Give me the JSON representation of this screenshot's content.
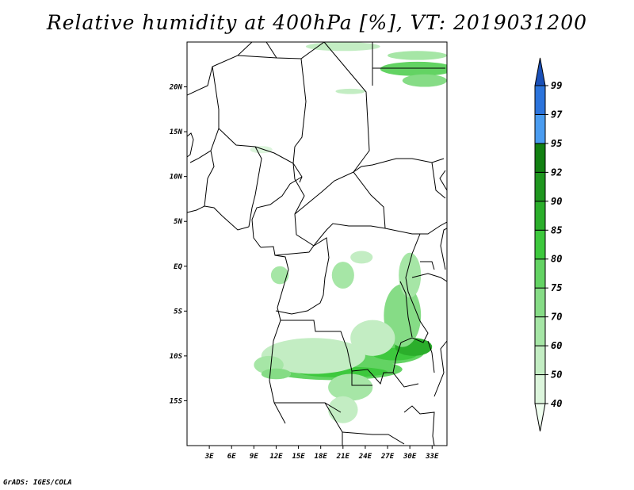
{
  "title": "Relative humidity at 400hPa [%], VT: 2019031200",
  "credit": "GrADS: IGES/COLA",
  "map": {
    "lon_range": [
      0,
      35
    ],
    "lat_range": [
      -20,
      25
    ],
    "lon_ticks": [
      3,
      6,
      9,
      12,
      15,
      18,
      21,
      24,
      27,
      30,
      33
    ],
    "lon_tick_labels": [
      "3E",
      "6E",
      "9E",
      "12E",
      "15E",
      "18E",
      "21E",
      "24E",
      "27E",
      "30E",
      "33E"
    ],
    "lat_ticks": [
      20,
      15,
      10,
      5,
      0,
      -5,
      -10,
      -15
    ],
    "lat_tick_labels": [
      "20N",
      "15N",
      "10N",
      "5N",
      "EQ",
      "5S",
      "10S",
      "15S"
    ]
  },
  "colorbar": {
    "levels": [
      "40",
      "50",
      "60",
      "70",
      "75",
      "80",
      "85",
      "90",
      "92",
      "95",
      "97",
      "99"
    ],
    "colors": [
      "#f0fff0",
      "#dcf5dc",
      "#c3edc3",
      "#a6e6a6",
      "#86dc86",
      "#63d363",
      "#3dc83d",
      "#2bae2b",
      "#1f961f",
      "#128012",
      "#4a9cf0",
      "#2c74dc",
      "#1a50b8"
    ]
  },
  "humid_regions": [
    {
      "lon": 20,
      "lat": -11.5,
      "rx": 9,
      "ry": 1.2,
      "level": 4
    },
    {
      "lon": 21,
      "lat": -11.8,
      "rx": 6,
      "ry": 0.6,
      "level": 5
    },
    {
      "lon": 27,
      "lat": -9.5,
      "rx": 5,
      "ry": 1.4,
      "level": 4
    },
    {
      "lon": 28,
      "lat": -9.8,
      "rx": 3,
      "ry": 0.7,
      "level": 5
    },
    {
      "lon": 30.5,
      "lat": -9,
      "rx": 2.5,
      "ry": 1.0,
      "level": 6
    },
    {
      "lon": 29,
      "lat": -5.5,
      "rx": 2.5,
      "ry": 3.5,
      "level": 3
    },
    {
      "lon": 30,
      "lat": -1,
      "rx": 1.5,
      "ry": 2.5,
      "level": 2
    },
    {
      "lon": 25,
      "lat": -8,
      "rx": 3,
      "ry": 2,
      "level": 1
    },
    {
      "lon": 17,
      "lat": -10,
      "rx": 7,
      "ry": 2,
      "level": 1
    },
    {
      "lon": 22,
      "lat": -13.5,
      "rx": 3,
      "ry": 1.5,
      "level": 2
    },
    {
      "lon": 21,
      "lat": -16,
      "rx": 2,
      "ry": 1.5,
      "level": 1
    },
    {
      "lon": 11,
      "lat": -11,
      "rx": 2,
      "ry": 1,
      "level": 2
    },
    {
      "lon": 12,
      "lat": -12,
      "rx": 2,
      "ry": 0.6,
      "level": 3
    },
    {
      "lon": 21,
      "lat": -1,
      "rx": 1.5,
      "ry": 1.5,
      "level": 2
    },
    {
      "lon": 23.5,
      "lat": 1,
      "rx": 1.5,
      "ry": 0.7,
      "level": 1
    },
    {
      "lon": 12.5,
      "lat": -1,
      "rx": 1.2,
      "ry": 1.0,
      "level": 2
    },
    {
      "lon": 31,
      "lat": 22,
      "rx": 5,
      "ry": 0.8,
      "level": 4
    },
    {
      "lon": 32,
      "lat": 20.7,
      "rx": 3,
      "ry": 0.7,
      "level": 3
    },
    {
      "lon": 31,
      "lat": 23.5,
      "rx": 4,
      "ry": 0.5,
      "level": 2
    },
    {
      "lon": 21,
      "lat": 24.5,
      "rx": 5,
      "ry": 0.5,
      "level": 1
    },
    {
      "lon": 22,
      "lat": 19.5,
      "rx": 2,
      "ry": 0.3,
      "level": 1
    },
    {
      "lon": 10,
      "lat": 13,
      "rx": 1.5,
      "ry": 0.4,
      "level": 0
    }
  ]
}
